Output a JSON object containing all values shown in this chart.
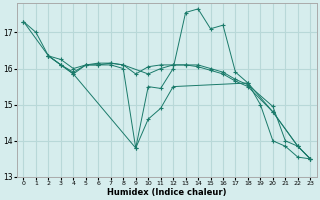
{
  "xlabel": "Humidex (Indice chaleur)",
  "bg_color": "#d6eded",
  "grid_color": "#b8d8d8",
  "line_color": "#1a7a6a",
  "xlim": [
    -0.5,
    23.5
  ],
  "ylim": [
    13,
    17.8
  ],
  "yticks": [
    13,
    14,
    15,
    16,
    17
  ],
  "xticks": [
    0,
    1,
    2,
    3,
    4,
    5,
    6,
    7,
    8,
    9,
    10,
    11,
    12,
    13,
    14,
    15,
    16,
    17,
    18,
    19,
    20,
    21,
    22,
    23
  ],
  "series": [
    {
      "x": [
        0,
        1,
        2,
        3,
        4,
        5,
        6,
        7,
        8,
        9,
        10,
        11,
        12,
        13,
        14,
        15,
        16,
        17,
        18,
        19,
        20,
        21,
        22,
        23
      ],
      "y": [
        17.3,
        17.0,
        16.35,
        16.25,
        16.0,
        16.1,
        16.1,
        16.1,
        16.0,
        13.8,
        15.5,
        15.45,
        16.0,
        17.55,
        17.65,
        17.1,
        17.2,
        15.9,
        15.6,
        15.0,
        14.0,
        13.85,
        13.55,
        13.5
      ]
    },
    {
      "x": [
        2,
        3,
        4,
        5,
        6,
        7,
        8,
        9,
        10,
        11,
        12,
        13,
        14,
        15,
        16,
        17,
        18,
        20,
        21,
        22,
        23
      ],
      "y": [
        16.35,
        16.1,
        15.85,
        16.1,
        16.1,
        16.15,
        16.1,
        15.85,
        16.05,
        16.1,
        16.1,
        16.1,
        16.1,
        16.0,
        15.9,
        15.7,
        15.55,
        14.95,
        14.0,
        13.85,
        13.5
      ]
    },
    {
      "x": [
        2,
        3,
        4,
        5,
        6,
        7,
        8,
        10,
        11,
        12,
        13,
        14,
        15,
        16,
        17,
        18,
        20,
        22,
        23
      ],
      "y": [
        16.35,
        16.1,
        15.9,
        16.1,
        16.15,
        16.15,
        16.1,
        15.85,
        16.0,
        16.1,
        16.1,
        16.05,
        15.95,
        15.85,
        15.65,
        15.5,
        14.8,
        13.85,
        13.5
      ]
    },
    {
      "x": [
        0,
        2,
        3,
        4,
        9,
        10,
        11,
        12,
        18,
        20,
        22,
        23
      ],
      "y": [
        17.3,
        16.35,
        16.1,
        15.85,
        13.8,
        14.6,
        14.9,
        15.5,
        15.6,
        14.8,
        13.85,
        13.5
      ]
    }
  ]
}
